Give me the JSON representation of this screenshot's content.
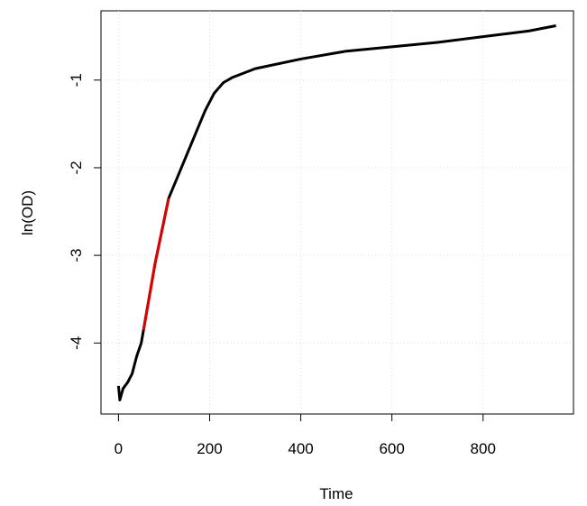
{
  "chart_data": {
    "type": "line",
    "x_label": "Time",
    "y_label": "ln(OD)",
    "series": [
      {
        "color": "#000000",
        "x": [
          0,
          3,
          10,
          20,
          30,
          40,
          50,
          55,
          80,
          110,
          130,
          150,
          170,
          190,
          210,
          230,
          250,
          300,
          400,
          500,
          600,
          700,
          800,
          900,
          960
        ],
        "values": [
          -4.49,
          -4.65,
          -4.52,
          -4.45,
          -4.35,
          -4.15,
          -4.0,
          -3.85,
          -3.1,
          -2.35,
          -2.1,
          -1.85,
          -1.6,
          -1.35,
          -1.15,
          -1.03,
          -0.97,
          -0.87,
          -0.76,
          -0.67,
          -0.62,
          -0.57,
          -0.505,
          -0.44,
          -0.38
        ]
      },
      {
        "color": "#dd0000",
        "x": [
          55,
          80,
          110
        ],
        "values": [
          -3.85,
          -3.1,
          -2.35
        ]
      }
    ],
    "xlim": [
      -38.4,
      998.4
    ],
    "ylim": [
      -4.81,
      -0.21
    ],
    "xticks": [
      0,
      200,
      400,
      600,
      800
    ],
    "yticks": [
      -4,
      -3,
      -2,
      -1
    ],
    "grid": true
  }
}
